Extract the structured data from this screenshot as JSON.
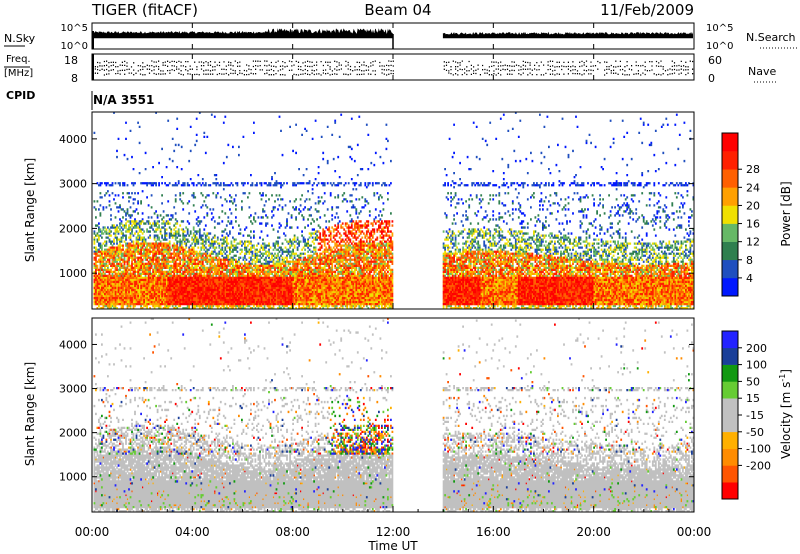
{
  "header": {
    "station": "TIGER (fitACF)",
    "beam": "Beam 04",
    "date": "11/Feb/2009"
  },
  "noise_panel": {
    "left_label": "N.Sky",
    "right_label": "N.Search",
    "left_ticks": [
      "10^5",
      "10^0"
    ],
    "right_ticks": [
      "10^5",
      "10^0"
    ]
  },
  "freq_panel": {
    "left_label_1": "Freq.",
    "left_label_2": "[MHz]",
    "left_ticks": [
      "18",
      "8"
    ],
    "right_label": "Nave",
    "right_ticks": [
      "60",
      "0"
    ]
  },
  "cpid": {
    "label": "CPID",
    "value": "N/A 3551"
  },
  "colors": {
    "power": [
      "#0018ff",
      "#1f4fbf",
      "#2f7f4f",
      "#66b866",
      "#f0e000",
      "#ffa000",
      "#ff6000",
      "#ff2000",
      "#ff0000"
    ],
    "velocity": [
      "#ff0000",
      "#ff5500",
      "#ff8c00",
      "#ffb000",
      "#c0c0c0",
      "#c0c0c0",
      "#66cc33",
      "#119911",
      "#1a3f99",
      "#2222ff"
    ],
    "ground_scatter": "#c0c0c0"
  },
  "chart_data": [
    {
      "type": "heatmap",
      "name_printed": "",
      "ylabel": "Slant Range [km]",
      "ylim": [
        200,
        4600
      ],
      "yticks": [
        1000,
        2000,
        3000,
        4000
      ],
      "xlim_hours": [
        0,
        24
      ],
      "data_gap_hours": [
        12,
        14
      ],
      "colorbar": {
        "label": "Power [dB]",
        "ticks": [
          "4",
          "8",
          "12",
          "16",
          "20",
          "24",
          "28"
        ]
      }
    },
    {
      "type": "heatmap",
      "ylabel": "Slant Range [km]",
      "ylim": [
        200,
        4600
      ],
      "yticks": [
        1000,
        2000,
        3000,
        4000
      ],
      "xlim_hours": [
        0,
        24
      ],
      "data_gap_hours": [
        12,
        14
      ],
      "colorbar": {
        "label": "Velocity [m s-1]",
        "label_main": "Velocity [m s",
        "label_sup": "-1",
        "label_end": "]",
        "ticks": [
          "200",
          "100",
          "50",
          "15",
          "-15",
          "-50",
          "-100",
          "-200"
        ]
      }
    }
  ],
  "x_axis": {
    "label": "Time UT",
    "ticks": [
      "00:00",
      "04:00",
      "08:00",
      "12:00",
      "16:00",
      "20:00",
      "00:00"
    ]
  }
}
